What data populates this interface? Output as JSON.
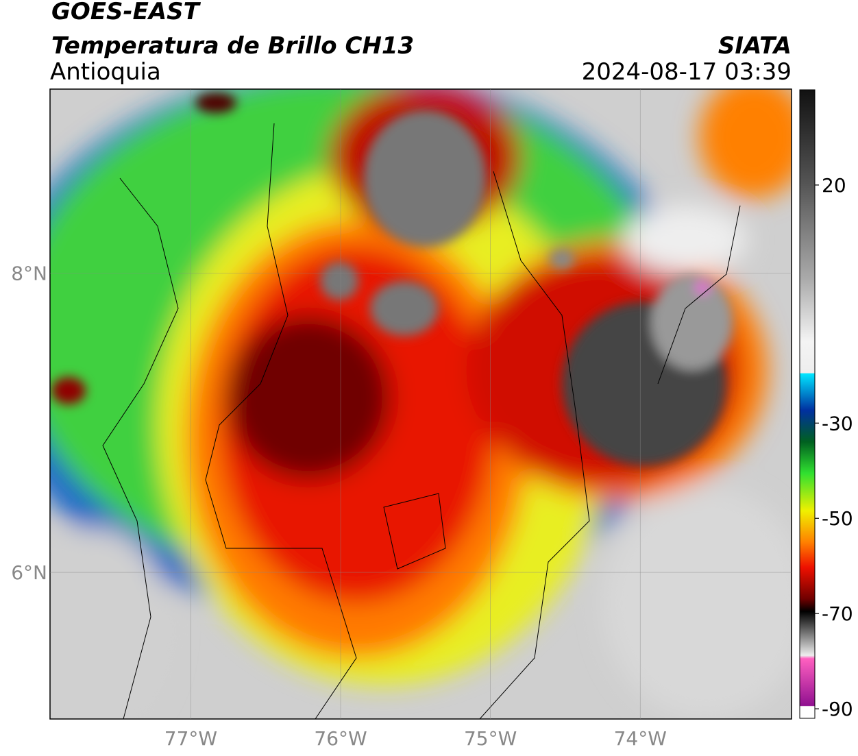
{
  "header": {
    "title": "GOES-EAST",
    "subtitle": "Temperatura de Brillo CH13",
    "region": "Antioquia",
    "source": "SIATA",
    "datetime": "2024-08-17 03:39"
  },
  "map": {
    "xlim": [
      -77.94,
      -72.99
    ],
    "ylim": [
      5.02,
      9.23
    ],
    "xticks": [
      {
        "value": -77,
        "label": "77°W"
      },
      {
        "value": -76,
        "label": "76°W"
      },
      {
        "value": -75,
        "label": "75°W"
      },
      {
        "value": -74,
        "label": "74°W"
      }
    ],
    "yticks": [
      {
        "value": 6,
        "label": "6°N"
      },
      {
        "value": 8,
        "label": "8°N"
      }
    ],
    "grid": true
  },
  "colorbar": {
    "range": [
      -92,
      40
    ],
    "ticks": [
      20,
      -30,
      -50,
      -70,
      -90
    ]
  }
}
